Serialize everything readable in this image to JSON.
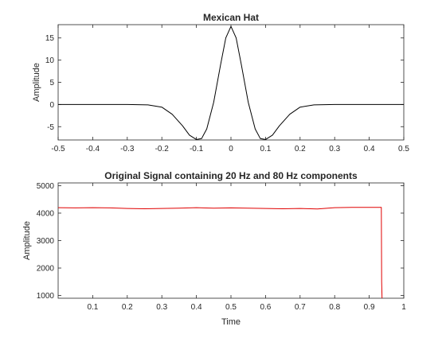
{
  "chart_data": [
    {
      "type": "line",
      "title": "Mexican Hat",
      "xlabel": "",
      "ylabel": "Amplitude",
      "xlim": [
        -0.5,
        0.5
      ],
      "ylim": [
        -8,
        18
      ],
      "xticks": [
        -0.5,
        -0.4,
        -0.3,
        -0.2,
        -0.1,
        0,
        0.1,
        0.2,
        0.3,
        0.4,
        0.5
      ],
      "xtick_labels": [
        "-0.5",
        "-0.4",
        "-0.3",
        "-0.2",
        "-0.1",
        "0",
        "0.1",
        "0.2",
        "0.3",
        "0.4",
        "0.5"
      ],
      "yticks": [
        -5,
        0,
        5,
        10,
        15
      ],
      "ytick_labels": [
        "-5",
        "0",
        "5",
        "10",
        "15"
      ],
      "series": [
        {
          "name": "Mexican Hat",
          "color": "#000000",
          "x": [
            -0.5,
            -0.3,
            -0.24,
            -0.2,
            -0.17,
            -0.14,
            -0.12,
            -0.1,
            -0.085,
            -0.07,
            -0.05,
            -0.03,
            -0.015,
            0,
            0.015,
            0.03,
            0.05,
            0.07,
            0.085,
            0.1,
            0.12,
            0.14,
            0.17,
            0.2,
            0.24,
            0.3,
            0.5
          ],
          "y": [
            0,
            0,
            -0.1,
            -0.6,
            -2.2,
            -4.8,
            -6.9,
            -7.9,
            -7.7,
            -5.5,
            0.5,
            9.0,
            15.0,
            17.6,
            15.0,
            9.0,
            0.5,
            -5.5,
            -7.7,
            -7.9,
            -6.9,
            -4.8,
            -2.2,
            -0.6,
            -0.1,
            0,
            0
          ]
        }
      ]
    },
    {
      "type": "line",
      "title": "Original Signal containing 20 Hz and 80 Hz components",
      "xlabel": "Time",
      "ylabel": "Amplitude",
      "xlim": [
        0,
        1
      ],
      "ylim": [
        900,
        5100
      ],
      "xticks": [
        0.1,
        0.2,
        0.3,
        0.4,
        0.5,
        0.6,
        0.7,
        0.8,
        0.9,
        1
      ],
      "xtick_labels": [
        "0.1",
        "0.2",
        "0.3",
        "0.4",
        "0.5",
        "0.6",
        "0.7",
        "0.8",
        "0.9",
        "1"
      ],
      "yticks": [
        1000,
        2000,
        3000,
        4000,
        5000
      ],
      "ytick_labels": [
        "1000",
        "2000",
        "3000",
        "4000",
        "5000"
      ],
      "series": [
        {
          "name": "Original Signal",
          "color": "#e00000",
          "x": [
            0,
            0.05,
            0.1,
            0.15,
            0.2,
            0.25,
            0.3,
            0.35,
            0.4,
            0.45,
            0.5,
            0.55,
            0.6,
            0.65,
            0.7,
            0.75,
            0.8,
            0.85,
            0.9,
            0.935,
            0.936,
            0.937
          ],
          "y": [
            4200,
            4190,
            4200,
            4190,
            4170,
            4160,
            4170,
            4180,
            4200,
            4180,
            4190,
            4180,
            4170,
            4160,
            4170,
            4150,
            4200,
            4210,
            4210,
            4210,
            1500,
            900
          ]
        }
      ]
    }
  ]
}
